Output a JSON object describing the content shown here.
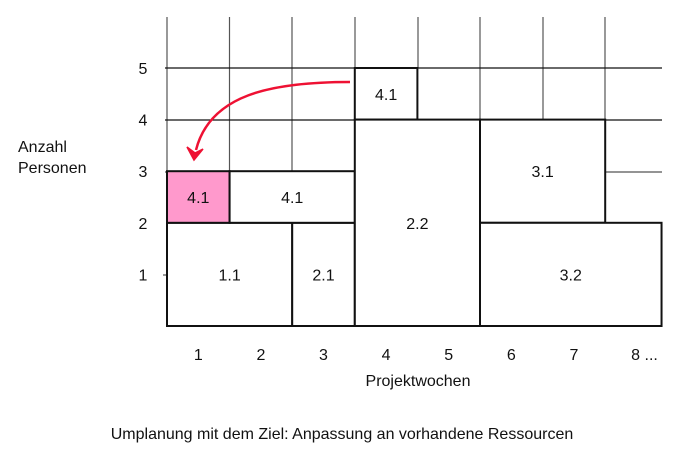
{
  "y_axis_label": [
    "Anzahl",
    "Personen"
  ],
  "x_axis_label": "Projektwochen",
  "x_ticks": [
    "1",
    "2",
    "3",
    "4",
    "5",
    "6",
    "7",
    "8 ..."
  ],
  "y_ticks": [
    "1",
    "2",
    "3",
    "4",
    "5"
  ],
  "caption": "Umplanung mit dem Ziel: Anpassung an vorhandene Ressourcen",
  "blocks": [
    {
      "label": "1.1",
      "weeks": [
        0,
        2
      ],
      "persons": [
        0,
        2
      ]
    },
    {
      "label": "2.1",
      "weeks": [
        2,
        3
      ],
      "persons": [
        0,
        2
      ]
    },
    {
      "label": "4.1",
      "weeks": [
        0,
        1
      ],
      "persons": [
        2,
        3
      ],
      "highlight": true
    },
    {
      "label": "4.1",
      "weeks": [
        1,
        3
      ],
      "persons": [
        2,
        3
      ]
    },
    {
      "label": "4.1",
      "weeks": [
        3,
        4
      ],
      "persons": [
        4,
        5
      ]
    },
    {
      "label": "2.2",
      "weeks": [
        3,
        5
      ],
      "persons": [
        0,
        4
      ]
    },
    {
      "label": "3.1",
      "weeks": [
        5,
        7
      ],
      "persons": [
        2,
        4
      ]
    },
    {
      "label": "3.2",
      "weeks": [
        5,
        7.9
      ],
      "persons": [
        0,
        2
      ]
    }
  ],
  "colors": {
    "highlight": "#ff99cc",
    "arrow": "#ee1133"
  }
}
